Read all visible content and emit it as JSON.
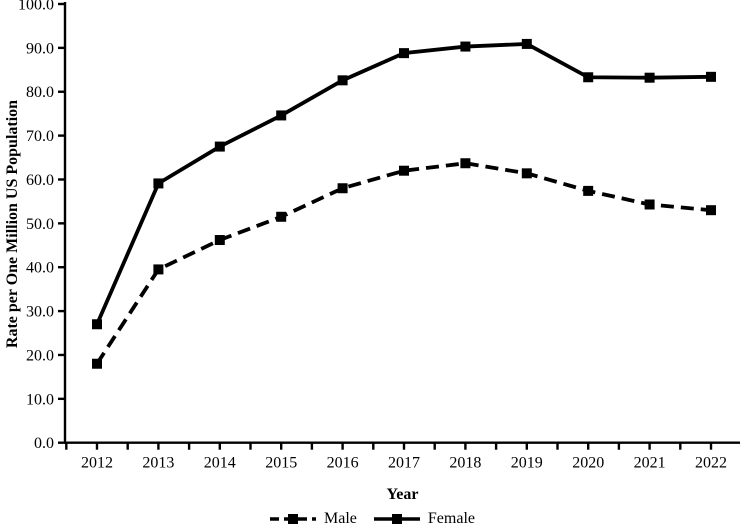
{
  "chart_data": {
    "type": "line",
    "title": "",
    "xlabel": "Year",
    "ylabel": "Rate per One Million US Population",
    "x": [
      "2012",
      "2013",
      "2014",
      "2015",
      "2016",
      "2017",
      "2018",
      "2019",
      "2020",
      "2021",
      "2022"
    ],
    "series": [
      {
        "name": "Male",
        "line_style": "dashed",
        "marker": "square",
        "color": "#000000",
        "values": [
          18.0,
          39.5,
          46.2,
          51.5,
          58.0,
          62.0,
          63.7,
          61.4,
          57.4,
          54.3,
          53.0
        ]
      },
      {
        "name": "Female",
        "line_style": "solid",
        "marker": "square",
        "color": "#000000",
        "values": [
          27.0,
          59.1,
          67.5,
          74.6,
          82.6,
          88.8,
          90.3,
          90.9,
          83.3,
          83.2,
          83.4
        ]
      }
    ],
    "ylim": [
      0,
      100
    ],
    "ytick_labels": [
      "0.0",
      "10.0",
      "20.0",
      "30.0",
      "40.0",
      "50.0",
      "60.0",
      "70.0",
      "80.0",
      "90.0",
      "100.0"
    ],
    "grid": false,
    "legend_position": "bottom",
    "background": "#ffffff",
    "axis_color": "#000000"
  }
}
